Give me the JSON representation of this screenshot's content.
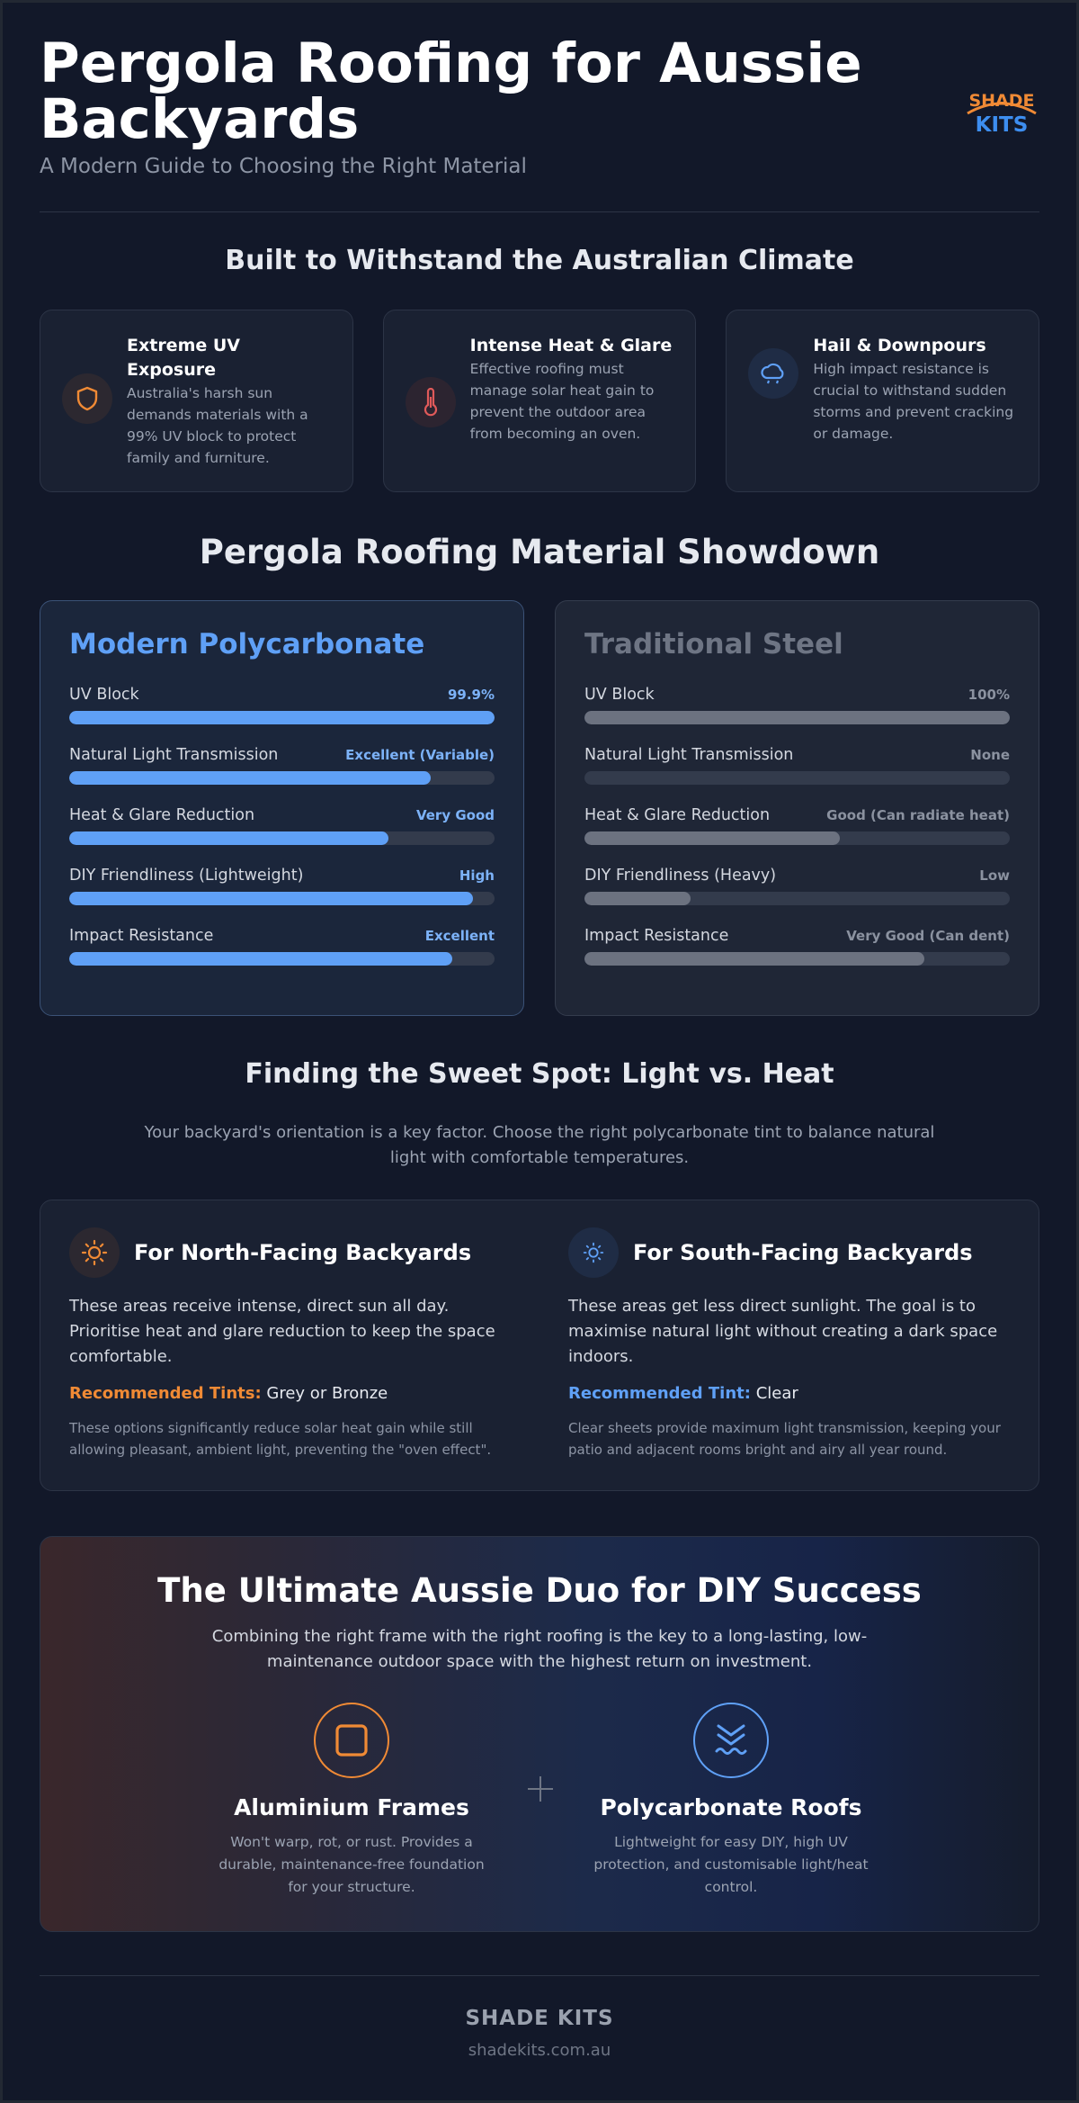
{
  "header": {
    "title": "Pergola Roofing for Aussie Backyards",
    "subtitle": "A Modern Guide to Choosing the Right Material",
    "logo_top": "SHADE",
    "logo_bottom": "KITS"
  },
  "climate": {
    "title": "Built to Withstand the Australian Climate",
    "cards": [
      {
        "icon": "shield-icon",
        "title": "Extreme UV Exposure",
        "text": "Australia's harsh sun demands materials with a 99% UV block to protect family and furniture."
      },
      {
        "icon": "thermometer-icon",
        "title": "Intense Heat & Glare",
        "text": "Effective roofing must manage solar heat gain to prevent the outdoor area from becoming an oven."
      },
      {
        "icon": "storm-cloud-icon",
        "title": "Hail & Downpours",
        "text": "High impact resistance is crucial to withstand sudden storms and prevent cracking or damage."
      }
    ]
  },
  "showdown": {
    "title": "Pergola Roofing Material Showdown",
    "materials": [
      {
        "name": "Modern Polycarbonate",
        "metrics": [
          {
            "label": "UV Block",
            "value": "99.9%",
            "level": 1.0
          },
          {
            "label": "Natural Light Transmission",
            "value": "Excellent (Variable)",
            "level": 0.85
          },
          {
            "label": "Heat & Glare Reduction",
            "value": "Very Good",
            "level": 0.75
          },
          {
            "label": "DIY Friendliness (Lightweight)",
            "value": "High",
            "level": 0.95
          },
          {
            "label": "Impact Resistance",
            "value": "Excellent",
            "level": 0.9
          }
        ]
      },
      {
        "name": "Traditional Steel",
        "metrics": [
          {
            "label": "UV Block",
            "value": "100%",
            "level": 1.0
          },
          {
            "label": "Natural Light Transmission",
            "value": "None",
            "level": 0.0
          },
          {
            "label": "Heat & Glare Reduction",
            "value": "Good (Can radiate heat)",
            "level": 0.6
          },
          {
            "label": "DIY Friendliness (Heavy)",
            "value": "Low",
            "level": 0.25
          },
          {
            "label": "Impact Resistance",
            "value": "Very Good (Can dent)",
            "level": 0.8
          }
        ]
      }
    ]
  },
  "sweet_spot": {
    "title": "Finding the Sweet Spot: Light vs. Heat",
    "intro": "Your backyard's orientation is a key factor. Choose the right polycarbonate tint to balance natural light with comfortable temperatures.",
    "north": {
      "title": "For North-Facing Backyards",
      "text": "These areas receive intense, direct sun all day. Prioritise heat and glare reduction to keep the space comfortable.",
      "tint_label": "Recommended Tints:",
      "tint_value": "Grey or Bronze",
      "note": "These options significantly reduce solar heat gain while still allowing pleasant, ambient light, preventing the \"oven effect\"."
    },
    "south": {
      "title": "For South-Facing Backyards",
      "text": "These areas get less direct sunlight. The goal is to maximise natural light without creating a dark space indoors.",
      "tint_label": "Recommended Tint:",
      "tint_value": "Clear",
      "note": "Clear sheets provide maximum light transmission, keeping your patio and adjacent rooms bright and airy all year round."
    }
  },
  "duo": {
    "title": "The Ultimate Aussie Duo for DIY Success",
    "subtitle": "Combining the right frame with the right roofing is the key to a long-lasting, low-maintenance outdoor space with the highest return on investment.",
    "left": {
      "title": "Aluminium Frames",
      "text": "Won't warp, rot, or rust. Provides a durable, maintenance-free foundation for your structure."
    },
    "right": {
      "title": "Polycarbonate Roofs",
      "text": "Lightweight for easy DIY, high UV protection, and customisable light/heat control."
    }
  },
  "footer": {
    "brand": "SHADE KITS",
    "url": "shadekits.com.au"
  },
  "colors": {
    "background": "#121829",
    "accent_blue": "#5fa0f6",
    "accent_orange": "#f08a35",
    "accent_red": "#e05a5a"
  }
}
